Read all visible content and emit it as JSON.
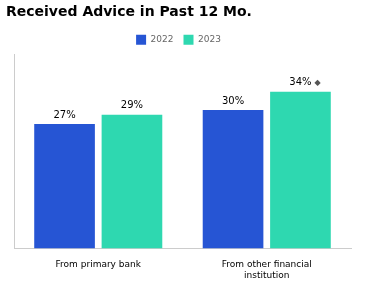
{
  "chart_data": {
    "type": "bar",
    "title": "Received Advice in Past 12 Mo.",
    "categories": [
      "From primary bank",
      "From other financial\ninstitution"
    ],
    "series": [
      {
        "name": "2022",
        "color": "#2655D4",
        "values": [
          27,
          30
        ],
        "value_labels": [
          "27%",
          "30%"
        ]
      },
      {
        "name": "2023",
        "color": "#2ED8B0",
        "values": [
          29,
          34
        ],
        "value_labels": [
          "29%",
          "34%"
        ]
      }
    ],
    "annotations": [
      {
        "text": "◆",
        "series": "2023",
        "category": "From other financial\ninstitution",
        "color": "#555555"
      }
    ],
    "ylim": [
      0,
      42
    ],
    "data_labels": true,
    "tick_labels": "x",
    "grid": false,
    "legend": "top"
  }
}
